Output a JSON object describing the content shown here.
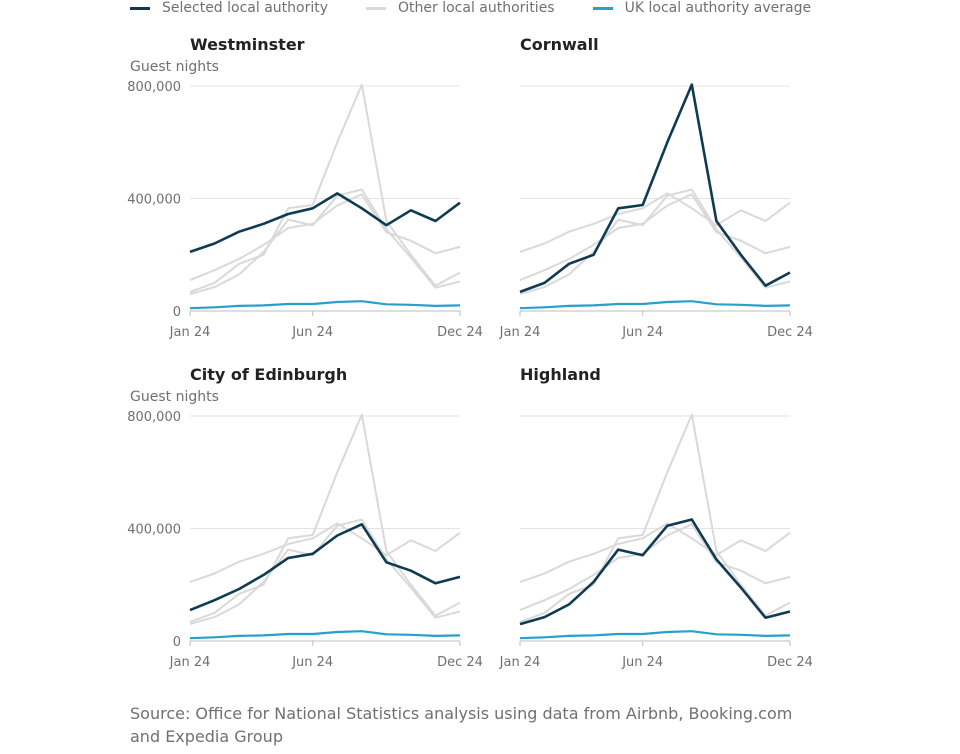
{
  "legend": {
    "selected": "Selected local authority",
    "other": "Other local authorities",
    "average": "UK local authority average"
  },
  "colors": {
    "selected": "#0f3b52",
    "other": "#d9d9d9",
    "average": "#27a0cc",
    "grid": "#e3e3e3",
    "axis_text": "#707071",
    "title_text": "#222222"
  },
  "source": "Source: Office for National Statistics analysis using data from Airbnb, Booking.com and Expedia Group",
  "chart_data": {
    "type": "line",
    "ylabel": "Guest nights",
    "ylim": [
      0,
      800000
    ],
    "yticks": [
      0,
      400000,
      800000
    ],
    "ytick_labels": [
      "0",
      "400,000",
      "800,000"
    ],
    "x": [
      "Jan 24",
      "Feb 24",
      "Mar 24",
      "Apr 24",
      "May 24",
      "Jun 24",
      "Jul 24",
      "Aug 24",
      "Sep 24",
      "Oct 24",
      "Nov 24",
      "Dec 24"
    ],
    "xtick_labels": [
      "Jan 24",
      "Jun 24",
      "Dec 24"
    ],
    "grid": true,
    "legend_position": "top",
    "series": [
      {
        "name": "Westminster",
        "values": [
          210000,
          240000,
          282000,
          310000,
          345000,
          365000,
          418000,
          365000,
          305000,
          358000,
          320000,
          385000
        ]
      },
      {
        "name": "Cornwall",
        "values": [
          68000,
          100000,
          168000,
          200000,
          365000,
          377000,
          600000,
          805000,
          320000,
          200000,
          90000,
          137000
        ]
      },
      {
        "name": "City of Edinburgh",
        "values": [
          110000,
          145000,
          185000,
          235000,
          295000,
          310000,
          375000,
          415000,
          280000,
          250000,
          205000,
          228000
        ]
      },
      {
        "name": "Highland",
        "values": [
          60000,
          85000,
          130000,
          210000,
          325000,
          305000,
          410000,
          432000,
          290000,
          190000,
          83000,
          105000
        ]
      }
    ],
    "average": [
      10000,
      13000,
      18000,
      20000,
      25000,
      25000,
      32000,
      35000,
      24000,
      22000,
      18000,
      20000
    ],
    "panels": [
      {
        "title": "Westminster",
        "series_index": 0,
        "show_ylabel": true
      },
      {
        "title": "Cornwall",
        "series_index": 1,
        "show_ylabel": false
      },
      {
        "title": "City of Edinburgh",
        "series_index": 2,
        "show_ylabel": true
      },
      {
        "title": "Highland",
        "series_index": 3,
        "show_ylabel": false
      }
    ]
  }
}
